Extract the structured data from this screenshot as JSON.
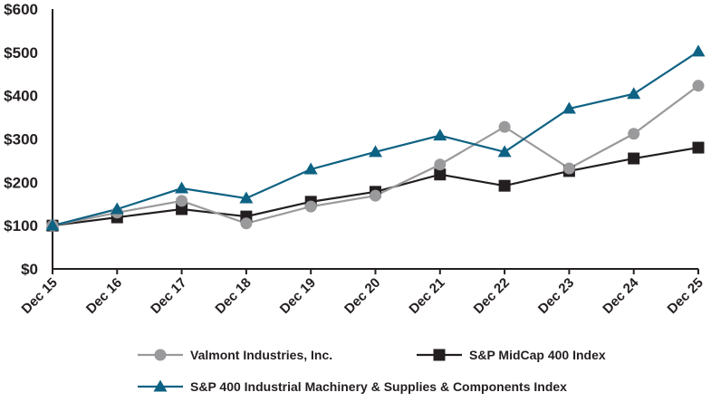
{
  "chart_data": {
    "type": "line",
    "title": "",
    "xlabel": "",
    "ylabel": "",
    "categories": [
      "Dec 15",
      "Dec 16",
      "Dec 17",
      "Dec 18",
      "Dec 19",
      "Dec 20",
      "Dec 21",
      "Dec 22",
      "Dec 23",
      "Dec 24",
      "Dec 25"
    ],
    "ylim": [
      0,
      600
    ],
    "yticks": [
      0,
      100,
      200,
      300,
      400,
      500,
      600
    ],
    "ytick_labels": [
      "$0",
      "$100",
      "$200",
      "$300",
      "$400",
      "$500",
      "$600"
    ],
    "grid": false,
    "legend_placement": "bottom",
    "series": [
      {
        "name": "Valmont Industries, Inc.",
        "color": "#9a9a9c",
        "marker": "circle",
        "values": [
          100,
          130,
          157,
          105,
          144,
          169,
          241,
          328,
          232,
          312,
          423
        ]
      },
      {
        "name": "S&P MidCap 400 Index",
        "color": "#231f20",
        "marker": "square",
        "values": [
          100,
          119,
          138,
          121,
          155,
          178,
          218,
          192,
          226,
          255,
          280
        ]
      },
      {
        "name": "S&P 400 Industrial Machinery & Supplies & Components Index",
        "color": "#0e6283",
        "marker": "triangle",
        "values": [
          100,
          138,
          186,
          163,
          230,
          270,
          308,
          270,
          370,
          404,
          502
        ]
      }
    ]
  }
}
